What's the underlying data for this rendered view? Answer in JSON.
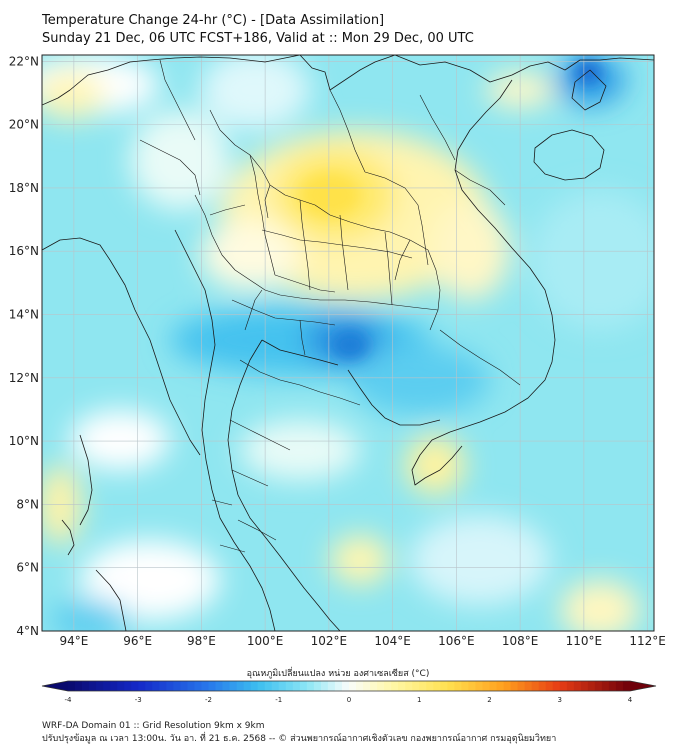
{
  "header": {
    "title": "Temperature Change 24-hr (°C) - [Data Assimilation]",
    "subtitle": "Sunday 21 Dec, 06 UTC FCST+186, Valid at :: Mon 29 Dec, 00 UTC"
  },
  "map": {
    "lon_range": [
      93,
      112.2
    ],
    "lat_range": [
      4,
      22.2
    ],
    "lon_ticks": [
      "94°E",
      "96°E",
      "98°E",
      "100°E",
      "102°E",
      "104°E",
      "106°E",
      "108°E",
      "110°E",
      "112°E"
    ],
    "lat_ticks": [
      "22°N",
      "20°N",
      "18°N",
      "16°N",
      "14°N",
      "12°N",
      "10°N",
      "8°N",
      "6°N",
      "4°N"
    ],
    "grid": true,
    "colors": {
      "land_border": "#1a1a1a",
      "background_field": "#8fe6f0",
      "warm": "#fff3a8",
      "cool": "#2fb6ec"
    }
  },
  "colorbar": {
    "label": "อุณหภูมิเปลี่ยนแปลง หน่วย องศาเซลเซียส (°C)",
    "ticks": [
      "-4",
      "-3",
      "-2",
      "-1",
      "0",
      "1",
      "2",
      "3",
      "4"
    ],
    "range": [
      -4,
      4
    ]
  },
  "footer": {
    "line1": "WRF-DA Domain 01 :: Grid Resolution 9km x 9km",
    "line2": "ปรับปรุงข้อมูล ณ เวลา 13:00น. วัน อา. ที่ 21 ธ.ค. 2568 -- © ส่วนพยากรณ์อากาศเชิงตัวเลข กองพยากรณ์อากาศ กรมอุตุนิยมวิทยา"
  }
}
